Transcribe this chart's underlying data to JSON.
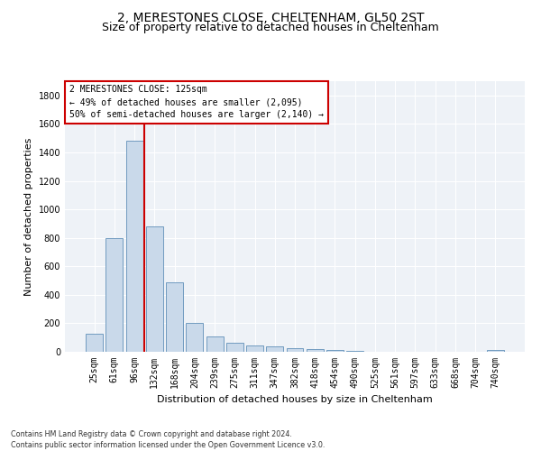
{
  "title1": "2, MERESTONES CLOSE, CHELTENHAM, GL50 2ST",
  "title2": "Size of property relative to detached houses in Cheltenham",
  "xlabel": "Distribution of detached houses by size in Cheltenham",
  "ylabel": "Number of detached properties",
  "footnote": "Contains HM Land Registry data © Crown copyright and database right 2024.\nContains public sector information licensed under the Open Government Licence v3.0.",
  "categories": [
    "25sqm",
    "61sqm",
    "96sqm",
    "132sqm",
    "168sqm",
    "204sqm",
    "239sqm",
    "275sqm",
    "311sqm",
    "347sqm",
    "382sqm",
    "418sqm",
    "454sqm",
    "490sqm",
    "525sqm",
    "561sqm",
    "597sqm",
    "633sqm",
    "668sqm",
    "704sqm",
    "740sqm"
  ],
  "values": [
    125,
    800,
    1480,
    880,
    490,
    205,
    105,
    65,
    45,
    35,
    25,
    20,
    10,
    5,
    3,
    2,
    1,
    1,
    1,
    1,
    15
  ],
  "bar_color": "#c9d9ea",
  "bar_edge_color": "#6090b8",
  "vline_color": "#cc0000",
  "vline_pos": 2.5,
  "annotation_text": "2 MERESTONES CLOSE: 125sqm\n← 49% of detached houses are smaller (2,095)\n50% of semi-detached houses are larger (2,140) →",
  "annotation_box_color": "#ffffff",
  "annotation_box_edge": "#cc0000",
  "ylim": [
    0,
    1900
  ],
  "yticks": [
    0,
    200,
    400,
    600,
    800,
    1000,
    1200,
    1400,
    1600,
    1800
  ],
  "bg_color": "#eef2f7",
  "grid_color": "#ffffff",
  "title1_fontsize": 10,
  "title2_fontsize": 9,
  "ylabel_fontsize": 8,
  "xlabel_fontsize": 8,
  "tick_fontsize": 7,
  "annotation_fontsize": 7,
  "footnote_fontsize": 5.8
}
